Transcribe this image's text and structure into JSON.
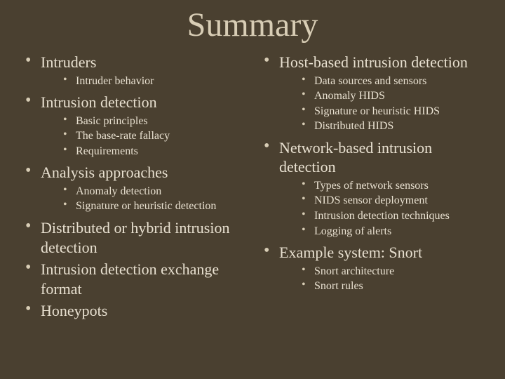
{
  "title": "Summary",
  "left": {
    "items": [
      {
        "label": "Intruders",
        "subs": [
          "Intruder behavior"
        ]
      },
      {
        "label": "Intrusion detection",
        "subs": [
          "Basic principles",
          "The base-rate fallacy",
          "Requirements"
        ]
      },
      {
        "label": "Analysis approaches",
        "subs": [
          "Anomaly detection",
          "Signature or heuristic detection"
        ]
      },
      {
        "label": "Distributed or hybrid intrusion detection",
        "subs": []
      },
      {
        "label": "Intrusion detection exchange format",
        "subs": []
      },
      {
        "label": "Honeypots",
        "subs": []
      }
    ]
  },
  "right": {
    "items": [
      {
        "label": "Host-based intrusion detection",
        "subs": [
          "Data sources and sensors",
          "Anomaly HIDS",
          "Signature or heuristic HIDS",
          "Distributed HIDS"
        ]
      },
      {
        "label": "Network-based intrusion detection",
        "subs": [
          "Types of network sensors",
          "NIDS sensor deployment",
          "Intrusion detection techniques",
          "Logging of alerts"
        ]
      },
      {
        "label": "Example system: Snort",
        "subs": [
          "Snort architecture",
          "Snort rules"
        ]
      }
    ]
  },
  "colors": {
    "background": "#4a4030",
    "title": "#d8cdb5",
    "text": "#e8e0d0",
    "bullet": "#d8cdb5"
  },
  "typography": {
    "title_fontsize": 48,
    "top_fontsize": 22,
    "sub_fontsize": 16,
    "font_family": "Georgia, serif"
  }
}
